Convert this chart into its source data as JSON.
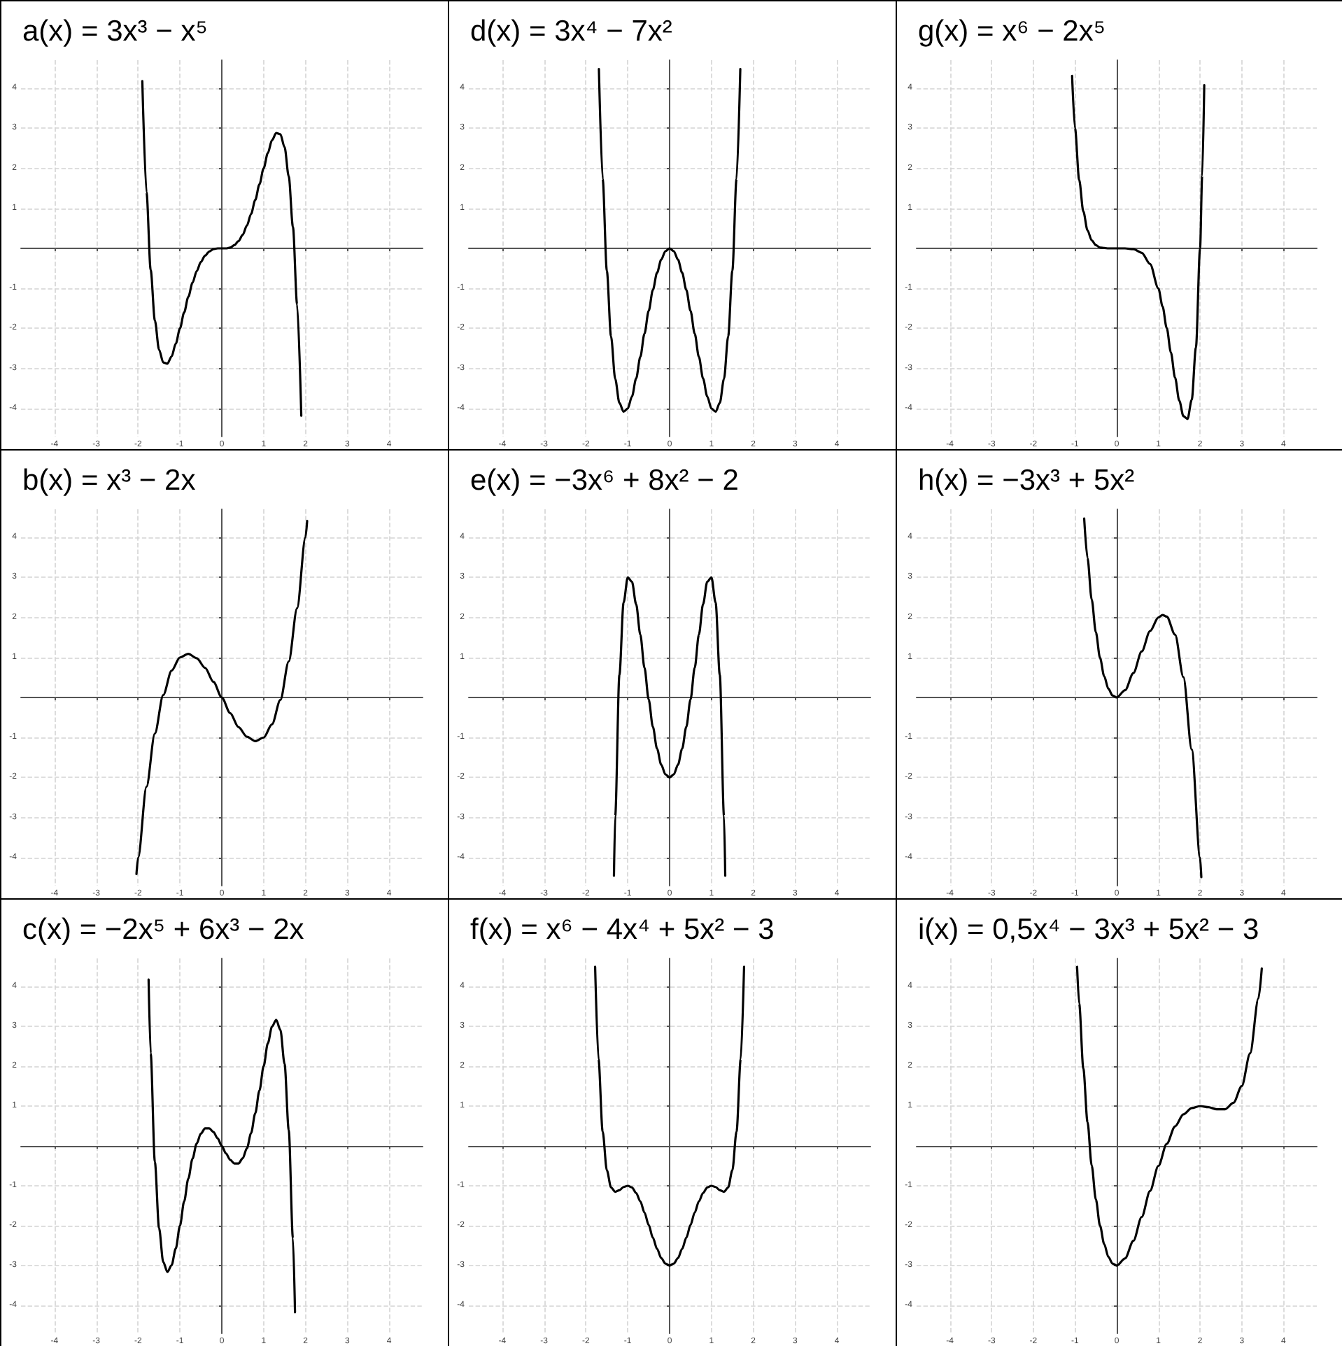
{
  "chart_data": [
    {
      "type": "line",
      "title": "a(x) = 3x³ − x⁵",
      "color": "#000000",
      "grid": true,
      "xlim": [
        -4.8,
        4.8
      ],
      "ylim": [
        -4.7,
        4.7
      ],
      "xticks": [
        -4,
        -3,
        -2,
        -1,
        0,
        1,
        2,
        3,
        4
      ],
      "yticks": [
        -4,
        -3,
        -2,
        -1,
        1,
        2,
        3,
        4
      ],
      "x": [
        -1.9,
        -1.8,
        -1.7,
        -1.6,
        -1.5,
        -1.4,
        -1.3,
        -1.2,
        -1.1,
        -1,
        -0.9,
        -0.8,
        -0.7,
        -0.6,
        -0.5,
        -0.4,
        -0.3,
        -0.2,
        -0.1,
        0,
        0.1,
        0.2,
        0.3,
        0.4,
        0.5,
        0.6,
        0.7,
        0.8,
        0.9,
        1,
        1.1,
        1.2,
        1.3,
        1.4,
        1.5,
        1.6,
        1.7,
        1.8,
        1.9
      ],
      "values": [
        4.18,
        1.4,
        -0.54,
        -1.8,
        -2.53,
        -2.85,
        -2.88,
        -2.7,
        -2.38,
        -2,
        -1.6,
        -1.21,
        -0.86,
        -0.57,
        -0.34,
        -0.18,
        -0.08,
        -0.02,
        0,
        0,
        0,
        0.02,
        0.08,
        0.18,
        0.34,
        0.57,
        0.86,
        1.21,
        1.6,
        2,
        2.38,
        2.7,
        2.88,
        2.85,
        2.53,
        1.8,
        0.54,
        -1.4,
        -4.18
      ]
    },
    {
      "type": "line",
      "title": "d(x) = 3x⁴ − 7x²",
      "color": "#000000",
      "grid": true,
      "xlim": [
        -4.8,
        4.8
      ],
      "ylim": [
        -4.7,
        4.7
      ],
      "xticks": [
        -4,
        -3,
        -2,
        -1,
        0,
        1,
        2,
        3,
        4
      ],
      "yticks": [
        -4,
        -3,
        -2,
        -1,
        1,
        2,
        3,
        4
      ],
      "x": [
        -1.69,
        -1.6,
        -1.5,
        -1.4,
        -1.3,
        -1.2,
        -1.1,
        -1,
        -0.9,
        -0.8,
        -0.7,
        -0.6,
        -0.5,
        -0.4,
        -0.3,
        -0.2,
        -0.1,
        0,
        0.1,
        0.2,
        0.3,
        0.4,
        0.5,
        0.6,
        0.7,
        0.8,
        0.9,
        1,
        1.1,
        1.2,
        1.3,
        1.4,
        1.5,
        1.6,
        1.69
      ],
      "values": [
        4.48,
        1.74,
        -0.56,
        -2.2,
        -3.26,
        -3.86,
        -4.08,
        -4,
        -3.7,
        -3.25,
        -2.71,
        -2.13,
        -1.56,
        -1.04,
        -0.61,
        -0.28,
        -0.07,
        0,
        -0.07,
        -0.28,
        -0.61,
        -1.04,
        -1.56,
        -2.13,
        -2.71,
        -3.25,
        -3.7,
        -4,
        -4.08,
        -3.86,
        -3.26,
        -2.2,
        -0.56,
        1.74,
        4.48
      ]
    },
    {
      "type": "line",
      "title": "g(x) = x⁶ − 2x⁵",
      "color": "#000000",
      "grid": true,
      "xlim": [
        -4.8,
        4.8
      ],
      "ylim": [
        -4.7,
        4.7
      ],
      "xticks": [
        -4,
        -3,
        -2,
        -1,
        0,
        1,
        2,
        3,
        4
      ],
      "yticks": [
        -4,
        -3,
        -2,
        -1,
        1,
        2,
        3,
        4
      ],
      "x": [
        -1.07,
        -1,
        -0.9,
        -0.8,
        -0.7,
        -0.6,
        -0.5,
        -0.4,
        -0.3,
        -0.2,
        0,
        0.2,
        0.4,
        0.6,
        0.8,
        1,
        1.1,
        1.2,
        1.3,
        1.4,
        1.5,
        1.6,
        1.7,
        1.8,
        1.9,
        2,
        2.05,
        2.1
      ],
      "values": [
        4.31,
        3,
        1.71,
        0.92,
        0.45,
        0.2,
        0.08,
        0.02,
        0.01,
        0,
        0,
        0,
        -0.02,
        -0.11,
        -0.39,
        -1,
        -1.45,
        -1.99,
        -2.6,
        -3.23,
        -3.8,
        -4.19,
        -4.26,
        -3.78,
        -2.48,
        0,
        1.81,
        4.08
      ]
    },
    {
      "type": "line",
      "title": "b(x) = x³ − 2x",
      "color": "#000000",
      "grid": true,
      "xlim": [
        -4.8,
        4.8
      ],
      "ylim": [
        -4.7,
        4.7
      ],
      "xticks": [
        -4,
        -3,
        -2,
        -1,
        0,
        1,
        2,
        3,
        4
      ],
      "yticks": [
        -4,
        -3,
        -2,
        -1,
        1,
        2,
        3,
        4
      ],
      "x": [
        -2.04,
        -2,
        -1.8,
        -1.6,
        -1.4,
        -1.2,
        -1,
        -0.8,
        -0.6,
        -0.4,
        -0.2,
        0,
        0.2,
        0.4,
        0.6,
        0.8,
        1,
        1.2,
        1.4,
        1.6,
        1.8,
        2,
        2.04
      ],
      "values": [
        -4.41,
        -4,
        -2.23,
        -0.9,
        0.06,
        0.67,
        1,
        1.09,
        0.98,
        0.74,
        0.39,
        0,
        -0.39,
        -0.74,
        -0.98,
        -1.09,
        -1,
        -0.67,
        -0.06,
        0.9,
        2.23,
        4,
        4.41
      ]
    },
    {
      "type": "line",
      "title": "e(x) = −3x⁶ + 8x² − 2",
      "color": "#000000",
      "grid": true,
      "xlim": [
        -4.8,
        4.8
      ],
      "ylim": [
        -4.7,
        4.7
      ],
      "xticks": [
        -4,
        -3,
        -2,
        -1,
        0,
        1,
        2,
        3,
        4
      ],
      "yticks": [
        -4,
        -3,
        -2,
        -1,
        1,
        2,
        3,
        4
      ],
      "x": [
        -1.33,
        -1.3,
        -1.2,
        -1.1,
        -1,
        -0.9,
        -0.8,
        -0.7,
        -0.6,
        -0.5,
        -0.4,
        -0.3,
        -0.2,
        -0.1,
        0,
        0.1,
        0.2,
        0.3,
        0.4,
        0.5,
        0.6,
        0.7,
        0.8,
        0.9,
        1,
        1.1,
        1.2,
        1.3,
        1.33
      ],
      "values": [
        -4.45,
        -2.96,
        0.56,
        2.37,
        3,
        2.89,
        2.33,
        1.57,
        0.74,
        -0.05,
        -0.73,
        -1.28,
        -1.68,
        -1.92,
        -2,
        -1.92,
        -1.68,
        -1.28,
        -0.73,
        -0.05,
        0.74,
        1.57,
        2.33,
        2.89,
        3,
        2.37,
        0.56,
        -2.96,
        -4.45
      ]
    },
    {
      "type": "line",
      "title": "h(x) = −3x³ + 5x²",
      "color": "#000000",
      "grid": true,
      "xlim": [
        -4.8,
        4.8
      ],
      "ylim": [
        -4.7,
        4.7
      ],
      "xticks": [
        -4,
        -3,
        -2,
        -1,
        0,
        1,
        2,
        3,
        4
      ],
      "yticks": [
        -4,
        -3,
        -2,
        -1,
        1,
        2,
        3,
        4
      ],
      "x": [
        -0.78,
        -0.7,
        -0.6,
        -0.5,
        -0.4,
        -0.3,
        -0.2,
        -0.1,
        0,
        0.2,
        0.4,
        0.6,
        0.8,
        1,
        1.1,
        1.2,
        1.4,
        1.6,
        1.8,
        2,
        2.03
      ],
      "values": [
        4.47,
        3.48,
        2.45,
        1.63,
        0.99,
        0.53,
        0.22,
        0.05,
        0,
        0.18,
        0.61,
        1.15,
        1.66,
        2,
        2.06,
        2.02,
        1.57,
        0.51,
        -1.3,
        -4,
        -4.49
      ]
    },
    {
      "type": "line",
      "title": "c(x) = −2x⁵ + 6x³ − 2x",
      "color": "#000000",
      "grid": true,
      "xlim": [
        -4.8,
        4.8
      ],
      "ylim": [
        -4.7,
        4.7
      ],
      "xticks": [
        -4,
        -3,
        -2,
        -1,
        0,
        1,
        2,
        3,
        4
      ],
      "yticks": [
        -4,
        -3,
        -2,
        -1,
        1,
        2,
        3,
        4
      ],
      "x": [
        -1.75,
        -1.7,
        -1.6,
        -1.5,
        -1.4,
        -1.3,
        -1.2,
        -1.1,
        -1,
        -0.9,
        -0.8,
        -0.7,
        -0.6,
        -0.5,
        -0.4,
        -0.3,
        -0.2,
        -0.1,
        0,
        0.1,
        0.2,
        0.3,
        0.4,
        0.5,
        0.6,
        0.7,
        0.8,
        0.9,
        1,
        1.1,
        1.2,
        1.3,
        1.4,
        1.5,
        1.6,
        1.7,
        1.75
      ],
      "values": [
        4.17,
        2.32,
        -0.4,
        -2.06,
        -2.91,
        -3.16,
        -2.99,
        -2.57,
        -2,
        -1.39,
        -0.82,
        -0.32,
        0.06,
        0.31,
        0.44,
        0.44,
        0.35,
        0.19,
        0,
        -0.19,
        -0.35,
        -0.44,
        -0.44,
        -0.31,
        -0.06,
        0.32,
        0.82,
        1.39,
        2,
        2.57,
        2.99,
        3.16,
        2.91,
        2.06,
        0.4,
        -2.32,
        -4.17
      ]
    },
    {
      "type": "line",
      "title": "f(x) = x⁶ − 4x⁴ + 5x² − 3",
      "color": "#000000",
      "grid": true,
      "xlim": [
        -4.8,
        4.8
      ],
      "ylim": [
        -4.7,
        4.7
      ],
      "xticks": [
        -4,
        -3,
        -2,
        -1,
        0,
        1,
        2,
        3,
        4
      ],
      "yticks": [
        -4,
        -3,
        -2,
        -1,
        1,
        2,
        3,
        4
      ],
      "x": [
        -1.78,
        -1.7,
        -1.6,
        -1.5,
        -1.4,
        -1.3,
        -1.2,
        -1.1,
        -1,
        -0.9,
        -0.8,
        -0.7,
        -0.6,
        -0.5,
        -0.4,
        -0.3,
        -0.2,
        -0.1,
        0,
        0.1,
        0.2,
        0.3,
        0.4,
        0.5,
        0.6,
        0.7,
        0.8,
        0.9,
        1,
        1.1,
        1.2,
        1.3,
        1.4,
        1.5,
        1.6,
        1.7,
        1.78
      ],
      "values": [
        4.49,
        2.18,
        0.36,
        -0.61,
        -1.04,
        -1.15,
        -1.11,
        -1.03,
        -1,
        -1.04,
        -1.18,
        -1.39,
        -1.67,
        -1.98,
        -2.3,
        -2.58,
        -2.81,
        -2.95,
        -3,
        -2.95,
        -2.81,
        -2.58,
        -2.3,
        -1.98,
        -1.67,
        -1.39,
        -1.18,
        -1.04,
        -1,
        -1.03,
        -1.11,
        -1.15,
        -1.04,
        -0.61,
        0.36,
        2.18,
        4.49
      ]
    },
    {
      "type": "line",
      "title": "i(x) = 0,5x⁴ − 3x³ + 5x² − 3",
      "color": "#000000",
      "grid": true,
      "xlim": [
        -4.8,
        4.8
      ],
      "ylim": [
        -4.7,
        4.7
      ],
      "xticks": [
        -4,
        -3,
        -2,
        -1,
        0,
        1,
        2,
        3,
        4
      ],
      "yticks": [
        -4,
        -3,
        -2,
        -1,
        1,
        2,
        3,
        4
      ],
      "x": [
        -0.95,
        -0.9,
        -0.8,
        -0.7,
        -0.6,
        -0.5,
        -0.4,
        -0.3,
        -0.2,
        -0.1,
        0,
        0.2,
        0.4,
        0.6,
        0.8,
        1,
        1.2,
        1.4,
        1.6,
        1.8,
        2,
        2.2,
        2.4,
        2.6,
        2.8,
        3,
        3.2,
        3.4,
        3.48
      ],
      "values": [
        4.49,
        3.57,
        1.94,
        0.6,
        -0.49,
        -1.34,
        -2,
        -2.46,
        -2.78,
        -2.95,
        -3,
        -2.82,
        -2.38,
        -1.78,
        -1.13,
        -0.5,
        0.05,
        0.49,
        0.79,
        0.95,
        1,
        0.97,
        0.92,
        0.92,
        1.08,
        1.5,
        2.32,
        3.7,
        4.45
      ]
    }
  ]
}
